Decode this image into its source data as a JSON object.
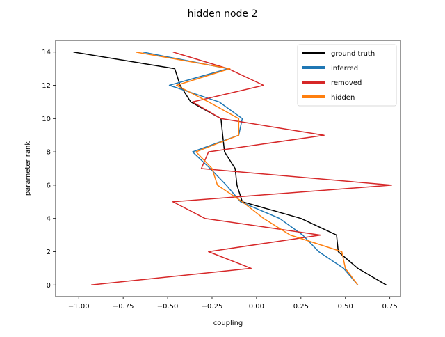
{
  "chart_data": {
    "type": "line",
    "title": "hidden node 2",
    "xlabel": "coupling",
    "ylabel": "parameter rank",
    "xlim": [
      -1.13,
      0.81
    ],
    "ylim": [
      -0.7,
      14.7
    ],
    "xticks": [
      -1.0,
      -0.75,
      -0.5,
      -0.25,
      0.0,
      0.25,
      0.5,
      0.75
    ],
    "xtick_labels": [
      "−1.00",
      "−0.75",
      "−0.50",
      "−0.25",
      "0.00",
      "0.25",
      "0.50",
      "0.75"
    ],
    "yticks": [
      0,
      2,
      4,
      6,
      8,
      10,
      12,
      14
    ],
    "ytick_labels": [
      "0",
      "2",
      "4",
      "6",
      "8",
      "10",
      "12",
      "14"
    ],
    "grid": false,
    "legend_position": "top-right",
    "y": [
      0,
      1,
      2,
      3,
      4,
      5,
      6,
      7,
      8,
      9,
      10,
      11,
      12,
      13,
      14
    ],
    "series": [
      {
        "name": "ground truth",
        "color": "#000000",
        "x": [
          0.73,
          0.57,
          0.46,
          0.45,
          0.25,
          -0.08,
          -0.11,
          -0.12,
          -0.18,
          -0.19,
          -0.2,
          -0.37,
          -0.43,
          -0.46,
          -1.03
        ]
      },
      {
        "name": "inferred",
        "color": "#1f77b4",
        "x": [
          0.57,
          0.49,
          0.35,
          0.26,
          0.13,
          -0.09,
          -0.17,
          -0.26,
          -0.36,
          -0.1,
          -0.08,
          -0.21,
          -0.49,
          -0.16,
          -0.64
        ]
      },
      {
        "name": "removed",
        "color": "#d62728",
        "x": [
          -0.93,
          -0.03,
          -0.27,
          0.36,
          -0.29,
          -0.47,
          0.76,
          -0.31,
          -0.27,
          0.38,
          -0.2,
          -0.36,
          0.04,
          -0.16,
          -0.47
        ]
      },
      {
        "name": "hidden",
        "color": "#ff7f0e",
        "x": [
          0.57,
          0.5,
          0.48,
          0.19,
          0.04,
          -0.08,
          -0.22,
          -0.25,
          -0.34,
          -0.1,
          -0.1,
          -0.27,
          -0.45,
          -0.15,
          -0.68
        ]
      }
    ]
  }
}
